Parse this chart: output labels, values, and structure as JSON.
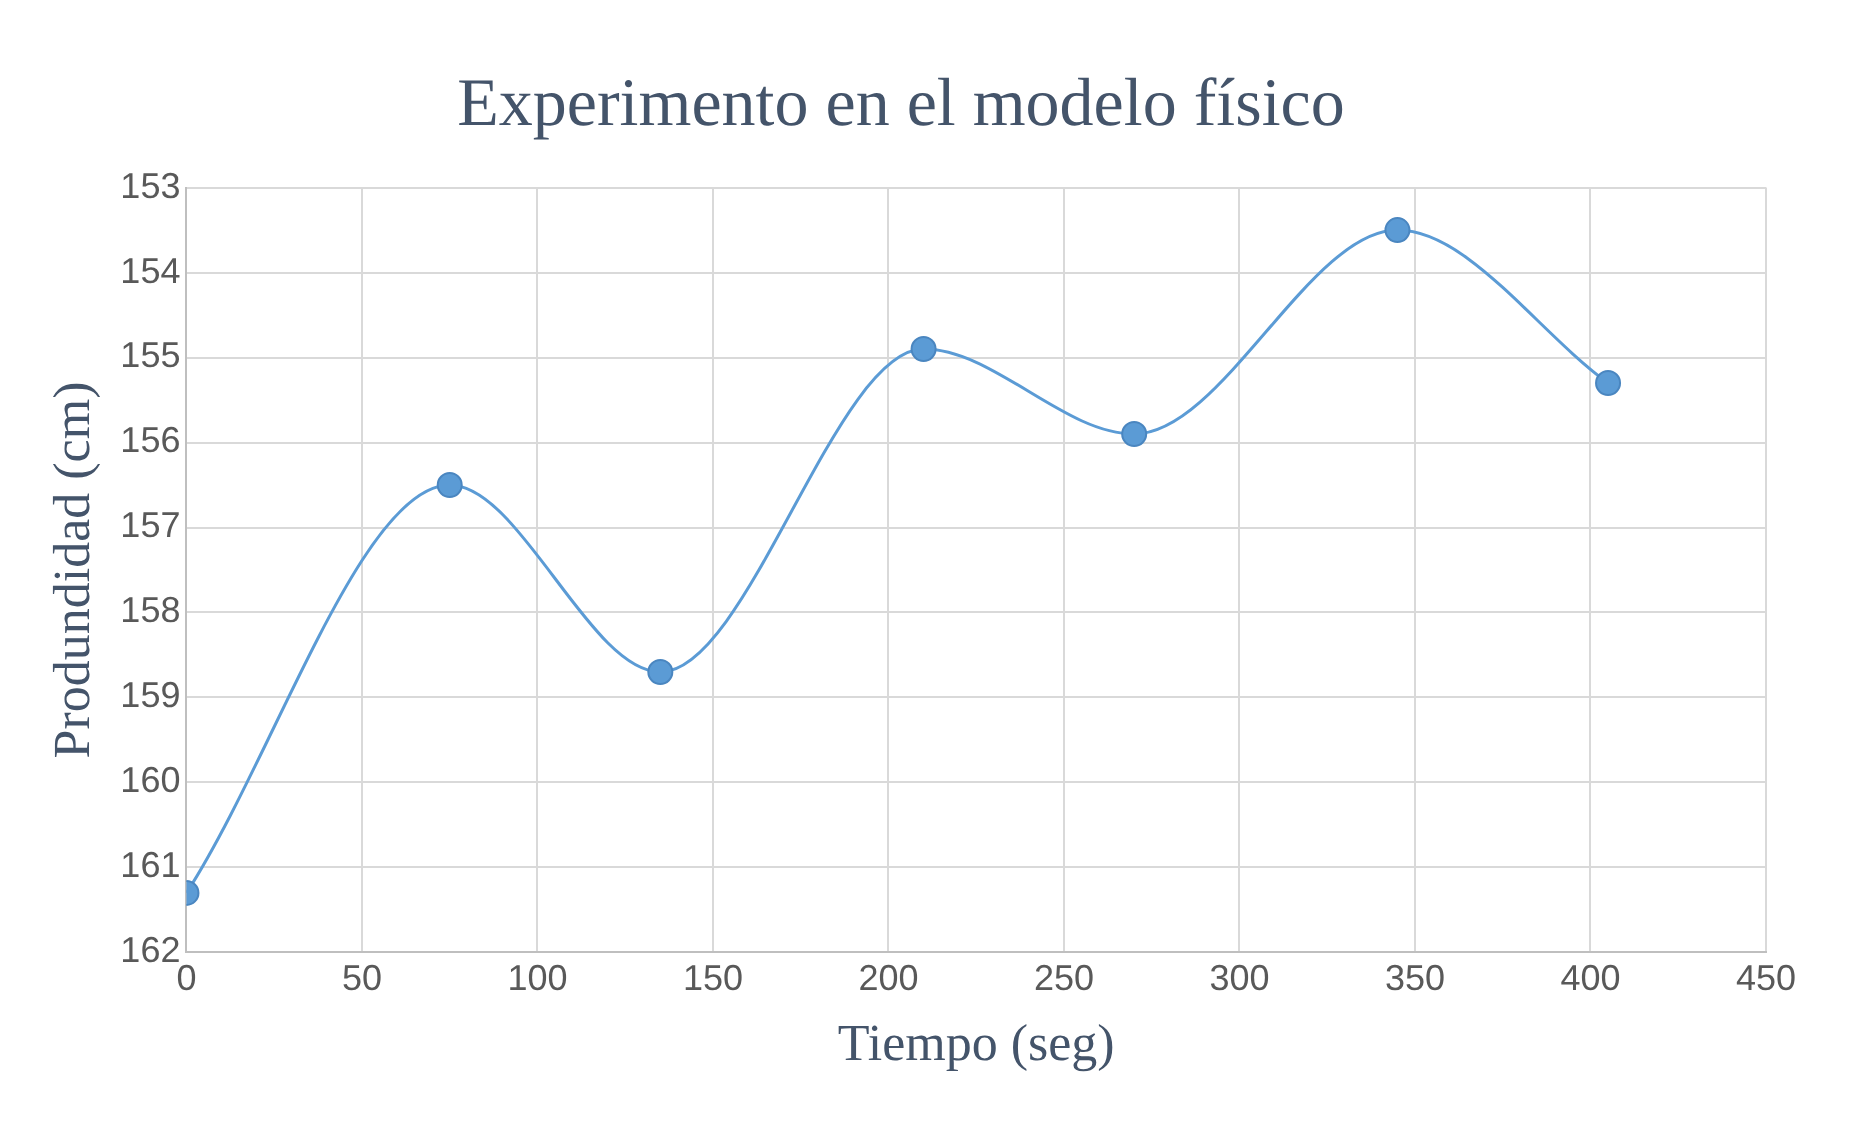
{
  "chart_data": {
    "type": "line",
    "title": "Experimento en el modelo físico",
    "xlabel": "Tiempo (seg)",
    "ylabel": "Produndidad (cm)",
    "x": [
      0,
      75,
      135,
      210,
      270,
      345,
      405
    ],
    "series": [
      {
        "color": "#5b9bd5",
        "values": [
          161.3,
          156.5,
          158.7,
          154.9,
          155.9,
          153.5,
          155.3
        ]
      }
    ],
    "xlim": [
      0,
      450
    ],
    "xticks": [
      0,
      50,
      100,
      150,
      200,
      250,
      300,
      350,
      400,
      450
    ],
    "ylim": [
      162,
      153
    ],
    "yticks": [
      153,
      154,
      155,
      156,
      157,
      158,
      159,
      160,
      161,
      162
    ],
    "grid": true,
    "legend": false,
    "marker": "circle",
    "line_style": "solid"
  }
}
